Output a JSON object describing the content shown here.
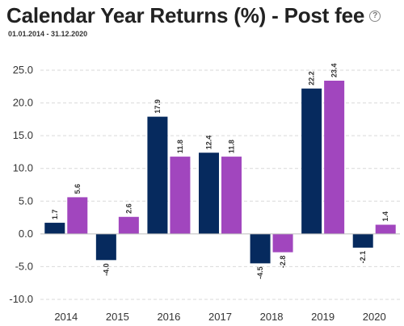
{
  "header": {
    "title": "Calendar Year Returns (%) - Post fee",
    "help_icon": "?",
    "date_range": "01.01.2014 - 31.12.2020"
  },
  "colors": {
    "series1": "#062a5e",
    "series2": "#a146be",
    "grid": "#d9d9d9"
  },
  "chart_data": {
    "type": "bar",
    "title": "Calendar Year Returns (%) - Post fee",
    "subtitle": "01.01.2014 - 31.12.2020",
    "xlabel": "",
    "ylabel": "",
    "categories": [
      "2014",
      "2015",
      "2016",
      "2017",
      "2018",
      "2019",
      "2020"
    ],
    "series": [
      {
        "values": [
          1.7,
          -4.0,
          17.9,
          12.4,
          -4.5,
          22.2,
          -2.1
        ]
      },
      {
        "values": [
          5.6,
          2.6,
          11.8,
          11.8,
          -2.8,
          23.4,
          1.4
        ]
      }
    ],
    "ylim": [
      -10,
      25
    ],
    "yticks": [
      "-10.0",
      "-5.0",
      "0.0",
      "5.0",
      "10.0",
      "15.0",
      "20.0",
      "25.0"
    ],
    "grid": true
  }
}
